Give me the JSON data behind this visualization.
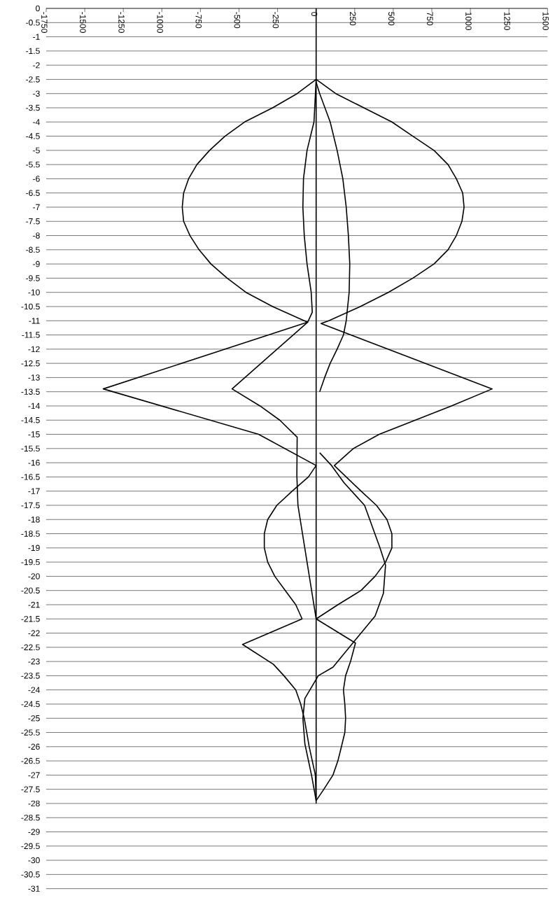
{
  "chart_data": {
    "type": "line",
    "xlim": [
      -1750,
      1500
    ],
    "xticks": [
      -1750,
      -1500,
      -1250,
      -1000,
      -750,
      -500,
      -250,
      0,
      250,
      500,
      750,
      1000,
      1250,
      1500
    ],
    "ylim": [
      -31,
      0
    ],
    "yticks": [
      0,
      -0.5,
      -1,
      -1.5,
      -2,
      -2.5,
      -3,
      -3.5,
      -4,
      -4.5,
      -5,
      -5.5,
      -6,
      -6.5,
      -7,
      -7.5,
      -8,
      -8.5,
      -9,
      -9.5,
      -10,
      -10.5,
      -11,
      -11.5,
      -12,
      -12.5,
      -13,
      -13.5,
      -14,
      -14.5,
      -15,
      -15.5,
      -16,
      -16.5,
      -17,
      -17.5,
      -18,
      -18.5,
      -19,
      -19.5,
      -20,
      -20.5,
      -21,
      -21.5,
      -22,
      -22.5,
      -23,
      -23.5,
      -24,
      -24.5,
      -25,
      -25.5,
      -26,
      -26.5,
      -27,
      -27.5,
      -28,
      -28.5,
      -29,
      -29.5,
      -30,
      -30.5,
      -31
    ],
    "grid": "y",
    "series": [
      {
        "color": "#000000",
        "x": [
          0,
          -123,
          -282,
          -464,
          -591,
          -691,
          -773,
          -827,
          -859,
          -868,
          -859,
          -818,
          -759,
          -682,
          -577,
          -455,
          -282,
          -77,
          -55,
          -1380,
          -373,
          0,
          -50,
          -155,
          -255,
          -314,
          -336,
          -336,
          -314,
          -268,
          -200,
          -132,
          -91,
          -477,
          -277,
          -209,
          -132,
          -100,
          -77,
          -45,
          -5,
          0
        ],
        "values": [
          -2.5,
          -3,
          -3.5,
          -4,
          -4.5,
          -5,
          -5.5,
          -6,
          -6.5,
          -7,
          -7.5,
          -8,
          -8.5,
          -9,
          -9.5,
          -10,
          -10.5,
          -11,
          -11.05,
          -13.4,
          -15,
          -16.1,
          -16.5,
          -17,
          -17.5,
          -18,
          -18.5,
          -19,
          -19.5,
          -20,
          -20.5,
          -21,
          -21.5,
          -22.4,
          -23.1,
          -23.5,
          -24,
          -24.5,
          -25,
          -26,
          -27,
          -27.9
        ]
      },
      {
        "color": "#000000",
        "x": [
          0,
          -14,
          -59,
          -82,
          -86,
          -77,
          -59,
          -32,
          -25,
          -55,
          -545,
          -364,
          -236,
          -123,
          -125,
          -118,
          0
        ],
        "values": [
          -2.5,
          -4,
          -5,
          -6,
          -7,
          -8,
          -9,
          -10,
          -10.7,
          -11.05,
          -13.4,
          -14,
          -14.5,
          -15.1,
          -16.45,
          -17.5,
          -21.5
        ]
      },
      {
        "color": "#000000",
        "x": [
          0,
          127,
          309,
          491,
          627,
          764,
          855,
          909,
          950,
          959,
          945,
          909,
          855,
          764,
          627,
          468,
          286,
          82,
          32,
          1141,
          877,
          409,
          241,
          118,
          291,
          391,
          459,
          491,
          491,
          450,
          382,
          291,
          141,
          0,
          255,
          223,
          191,
          177,
          186,
          191,
          186,
          164,
          141,
          109,
          50,
          0
        ],
        "values": [
          -2.5,
          -3,
          -3.5,
          -4,
          -4.5,
          -5,
          -5.5,
          -6,
          -6.5,
          -7,
          -7.5,
          -8,
          -8.5,
          -9,
          -9.5,
          -10,
          -10.5,
          -11,
          -11.1,
          -13.4,
          -14,
          -15,
          -15.5,
          -16.1,
          -17,
          -17.5,
          -18,
          -18.5,
          -19,
          -19.5,
          -20,
          -20.5,
          -21,
          -21.5,
          -22.35,
          -23,
          -23.5,
          -24,
          -24.5,
          -25,
          -25.5,
          -26,
          -26.5,
          -27,
          -27.5,
          -27.9
        ]
      },
      {
        "color": "#000000",
        "x": [
          0,
          23,
          91,
          136,
          173,
          195,
          209,
          218,
          214,
          195,
          177,
          136,
          91,
          55,
          23
        ],
        "values": [
          -2.6,
          -3,
          -4,
          -5,
          -6,
          -7,
          -8,
          -9,
          -10,
          -11,
          -11.5,
          -12,
          -12.5,
          -13,
          -13.5
        ]
      },
      {
        "color": "#000000",
        "x": [
          23,
          100,
          180,
          314,
          414,
          450,
          436,
          382,
          245,
          109,
          14,
          -73,
          -86,
          -73,
          -30,
          0
        ],
        "values": [
          -15.65,
          -16.1,
          -16.7,
          -17.5,
          -19,
          -19.6,
          -20.6,
          -21.4,
          -22.3,
          -23.2,
          -23.5,
          -24.3,
          -25,
          -25.9,
          -27,
          -27.9
        ]
      },
      {
        "color": "#000000",
        "x": [
          0,
          0
        ],
        "values": [
          0,
          -28
        ]
      }
    ]
  }
}
